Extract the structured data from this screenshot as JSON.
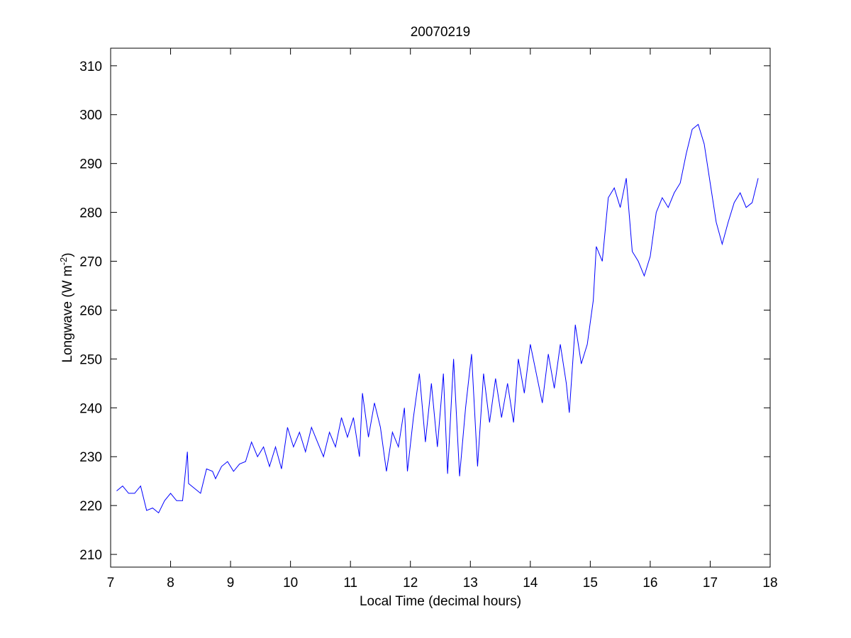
{
  "chart_data": {
    "type": "line",
    "title": "20070219",
    "xlabel": "Local Time (decimal hours)",
    "ylabel": [
      "Longwave (W m",
      "-2",
      ")"
    ],
    "xlim": [
      7,
      18
    ],
    "ylim": [
      207.4,
      313.6
    ],
    "xticks": [
      7,
      8,
      9,
      10,
      11,
      12,
      13,
      14,
      15,
      16,
      17,
      18
    ],
    "yticks": [
      210,
      220,
      230,
      240,
      250,
      260,
      270,
      280,
      290,
      300,
      310
    ],
    "grid": false,
    "x": [
      7.1,
      7.2,
      7.3,
      7.4,
      7.5,
      7.6,
      7.7,
      7.8,
      7.9,
      8.0,
      8.1,
      8.2,
      8.28,
      8.3,
      8.4,
      8.5,
      8.6,
      8.7,
      8.75,
      8.85,
      8.95,
      9.05,
      9.15,
      9.25,
      9.35,
      9.45,
      9.55,
      9.65,
      9.75,
      9.85,
      9.95,
      10.05,
      10.15,
      10.25,
      10.35,
      10.45,
      10.55,
      10.65,
      10.75,
      10.85,
      10.95,
      11.05,
      11.15,
      11.2,
      11.3,
      11.4,
      11.5,
      11.6,
      11.7,
      11.8,
      11.9,
      11.95,
      12.05,
      12.15,
      12.25,
      12.35,
      12.45,
      12.55,
      12.62,
      12.72,
      12.82,
      12.92,
      13.02,
      13.12,
      13.22,
      13.32,
      13.42,
      13.52,
      13.62,
      13.72,
      13.8,
      13.9,
      14.0,
      14.1,
      14.2,
      14.3,
      14.4,
      14.5,
      14.6,
      14.65,
      14.75,
      14.85,
      14.95,
      15.05,
      15.1,
      15.2,
      15.3,
      15.4,
      15.5,
      15.6,
      15.7,
      15.8,
      15.9,
      16.0,
      16.1,
      16.2,
      16.3,
      16.4,
      16.5,
      16.6,
      16.7,
      16.8,
      16.9,
      17.0,
      17.1,
      17.2,
      17.3,
      17.4,
      17.5,
      17.6,
      17.7,
      17.8
    ],
    "series": [
      {
        "color": "#0000ff",
        "values": [
          223,
          224,
          222.5,
          222.5,
          224,
          219,
          219.5,
          218.5,
          221,
          222.5,
          221,
          221,
          231,
          224.5,
          223.5,
          222.5,
          227.5,
          227,
          225.5,
          228,
          229,
          227,
          228.5,
          229,
          233,
          230,
          232,
          228,
          232,
          227.5,
          236,
          232,
          235,
          231,
          236,
          233,
          230,
          235,
          232,
          238,
          234,
          238,
          230,
          243,
          234,
          241,
          236,
          227,
          235,
          232,
          240,
          227,
          238,
          247,
          233,
          245,
          232,
          247,
          226.5,
          250,
          226,
          240,
          251,
          228,
          247,
          237,
          246,
          238,
          245,
          237,
          250,
          243,
          253,
          247,
          241,
          251,
          244,
          253,
          245,
          239,
          257,
          249,
          253,
          262,
          273,
          270,
          283,
          285,
          281,
          287,
          272,
          270,
          267,
          271,
          280,
          283,
          281,
          284,
          286,
          292,
          297,
          298,
          294,
          286,
          278,
          273.5,
          278,
          282,
          284,
          281,
          282,
          287
        ]
      }
    ]
  }
}
